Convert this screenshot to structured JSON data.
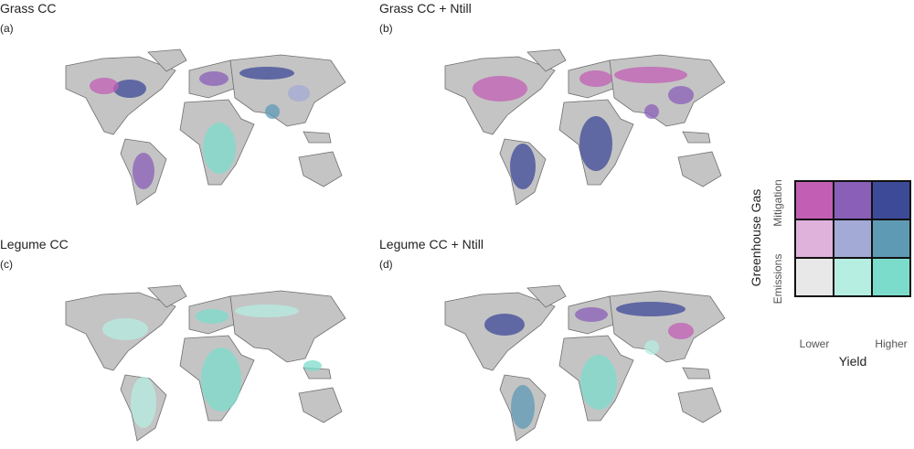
{
  "panels": [
    {
      "title": "Grass CC",
      "label": "(a)"
    },
    {
      "title": "Grass CC + Ntill",
      "label": "(b)"
    },
    {
      "title": "Legume CC",
      "label": "(c)"
    },
    {
      "title": "Legume CC + Ntill",
      "label": "(d)"
    }
  ],
  "legend": {
    "y_title": "Greenhouse Gas",
    "y_labels": [
      "Mitigation",
      "Emissions"
    ],
    "x_labels": [
      "Lower",
      "Higher"
    ],
    "x_title": "Yield",
    "colors": [
      [
        "#c25fb5",
        "#8a5fb8",
        "#3d4a98"
      ],
      [
        "#dfb2dc",
        "#a4aad6",
        "#5f9ab5"
      ],
      [
        "#e8e8e8",
        "#b6eee2",
        "#7cdccc"
      ]
    ]
  }
}
